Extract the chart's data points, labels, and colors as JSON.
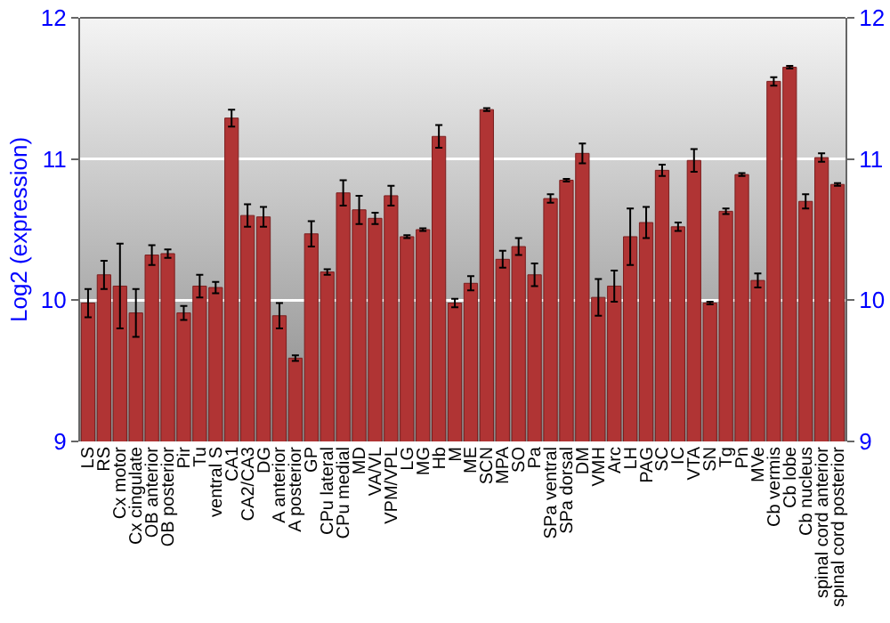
{
  "chart_data": {
    "type": "bar",
    "ylabel": "Log2 (expression)",
    "categories": [
      "LS",
      "RS",
      "Cx motor",
      "Cx cingulate",
      "OB anterior",
      "OB posterior",
      "Pir",
      "Tu",
      "ventral S",
      "CA1",
      "CA2/CA3",
      "DG",
      "A anterior",
      "A posterior",
      "GP",
      "CPu lateral",
      "CPu medial",
      "MD",
      "VA/VL",
      "VPM/VPL",
      "LG",
      "MG",
      "Hb",
      "M",
      "ME",
      "SCN",
      "MPA",
      "SO",
      "Pa",
      "SPa ventral",
      "SPa dorsal",
      "DM",
      "VMH",
      "Arc",
      "LH",
      "PAG",
      "SC",
      "IC",
      "VTA",
      "SN",
      "Tg",
      "Pn",
      "MVe",
      "Cb vermis",
      "Cb lobe",
      "Cb nucleus",
      "spinal cord anterior",
      "spinal cord posterior"
    ],
    "values": [
      9.98,
      10.18,
      10.1,
      9.91,
      10.32,
      10.33,
      9.91,
      10.1,
      10.09,
      11.29,
      10.6,
      10.59,
      9.89,
      9.59,
      10.47,
      10.2,
      10.76,
      10.64,
      10.58,
      10.74,
      10.45,
      10.5,
      11.16,
      9.98,
      10.12,
      11.35,
      10.29,
      10.38,
      10.18,
      10.72,
      10.85,
      11.04,
      10.02,
      10.1,
      10.45,
      10.55,
      10.92,
      10.52,
      10.99,
      9.98,
      10.63,
      10.89,
      10.14,
      11.55,
      11.65,
      10.7,
      11.01,
      10.82
    ],
    "errors": [
      0.1,
      0.1,
      0.3,
      0.17,
      0.07,
      0.03,
      0.05,
      0.08,
      0.04,
      0.06,
      0.08,
      0.07,
      0.09,
      0.02,
      0.09,
      0.02,
      0.09,
      0.1,
      0.04,
      0.07,
      0.01,
      0.01,
      0.08,
      0.03,
      0.05,
      0.01,
      0.06,
      0.06,
      0.08,
      0.03,
      0.01,
      0.07,
      0.13,
      0.11,
      0.2,
      0.11,
      0.04,
      0.03,
      0.08,
      0.01,
      0.02,
      0.01,
      0.05,
      0.03,
      0.01,
      0.05,
      0.03,
      0.01
    ],
    "color": "#b03434",
    "ylim": [
      9,
      12
    ],
    "yticks": [
      9,
      10,
      11,
      12
    ],
    "y2lim": [
      9,
      12
    ],
    "y2ticks": [
      9,
      10,
      11,
      12
    ],
    "grid": "y"
  }
}
